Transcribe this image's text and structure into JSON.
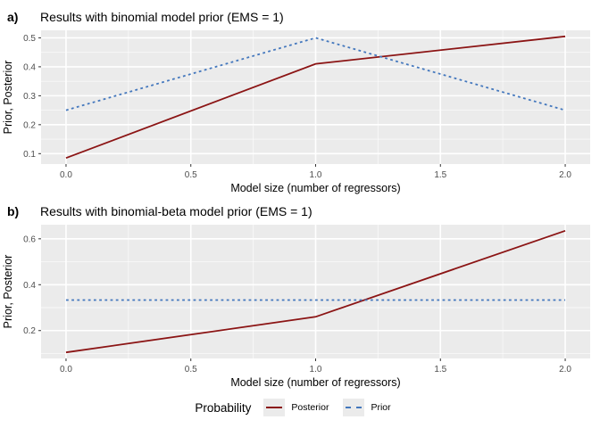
{
  "figure": {
    "background": "#ffffff",
    "panel_background": "#ebebeb",
    "grid_color": "#ffffff",
    "tick_label_color": "#4d4d4d",
    "tick_mark_color": "#333333",
    "text_color": "#000000"
  },
  "chart_data": [
    {
      "type": "line",
      "panel_tag": "a)",
      "title": "Results with binomial model prior (EMS = 1)",
      "xlabel": "Model size (number of regressors)",
      "ylabel": "Prior, Posterior",
      "x": [
        0,
        1,
        2
      ],
      "series": [
        {
          "name": "Posterior",
          "color": "#8B1414",
          "style": "solid",
          "values": [
            0.085,
            0.41,
            0.505
          ]
        },
        {
          "name": "Prior",
          "color": "#4377BD",
          "style": "dashed",
          "values": [
            0.25,
            0.5,
            0.25
          ]
        }
      ],
      "xlim": [
        -0.1,
        2.1
      ],
      "ylim": [
        0.064,
        0.526
      ],
      "xticks": {
        "values": [
          0,
          0.5,
          1,
          1.5,
          2
        ],
        "labels": [
          "0.0",
          "0.5",
          "1.0",
          "1.5",
          "2.0"
        ]
      },
      "yticks": {
        "values": [
          0.1,
          0.2,
          0.3,
          0.4,
          0.5
        ],
        "labels": [
          "0.1",
          "0.2",
          "0.3",
          "0.4",
          "0.5"
        ]
      },
      "x_minor": [
        0.25,
        0.75,
        1.25,
        1.75
      ],
      "y_minor": [
        0.15,
        0.25,
        0.35,
        0.45
      ],
      "grid": true,
      "legend_position": "bottom"
    },
    {
      "type": "line",
      "panel_tag": "b)",
      "title": "Results with binomial-beta model prior (EMS = 1)",
      "xlabel": "Model size (number of regressors)",
      "ylabel": "Prior, Posterior",
      "x": [
        0,
        1,
        2
      ],
      "series": [
        {
          "name": "Posterior",
          "color": "#8B1414",
          "style": "solid",
          "values": [
            0.105,
            0.26,
            0.635
          ]
        },
        {
          "name": "Prior",
          "color": "#4377BD",
          "style": "dashed",
          "values": [
            0.333,
            0.333,
            0.333
          ]
        }
      ],
      "xlim": [
        -0.1,
        2.1
      ],
      "ylim": [
        0.0785,
        0.6615
      ],
      "xticks": {
        "values": [
          0,
          0.5,
          1,
          1.5,
          2
        ],
        "labels": [
          "0.0",
          "0.5",
          "1.0",
          "1.5",
          "2.0"
        ]
      },
      "yticks": {
        "values": [
          0.2,
          0.4,
          0.6
        ],
        "labels": [
          "0.2",
          "0.4",
          "0.6"
        ]
      },
      "x_minor": [
        0.25,
        0.75,
        1.25,
        1.75
      ],
      "y_minor": [
        0.1,
        0.3,
        0.5
      ],
      "grid": true,
      "legend_position": "bottom"
    }
  ],
  "legend": {
    "title": "Probability",
    "items": [
      {
        "label": "Posterior",
        "style": "solid",
        "color": "#8B1414"
      },
      {
        "label": "Prior",
        "style": "dashed",
        "color": "#4377BD"
      }
    ]
  }
}
